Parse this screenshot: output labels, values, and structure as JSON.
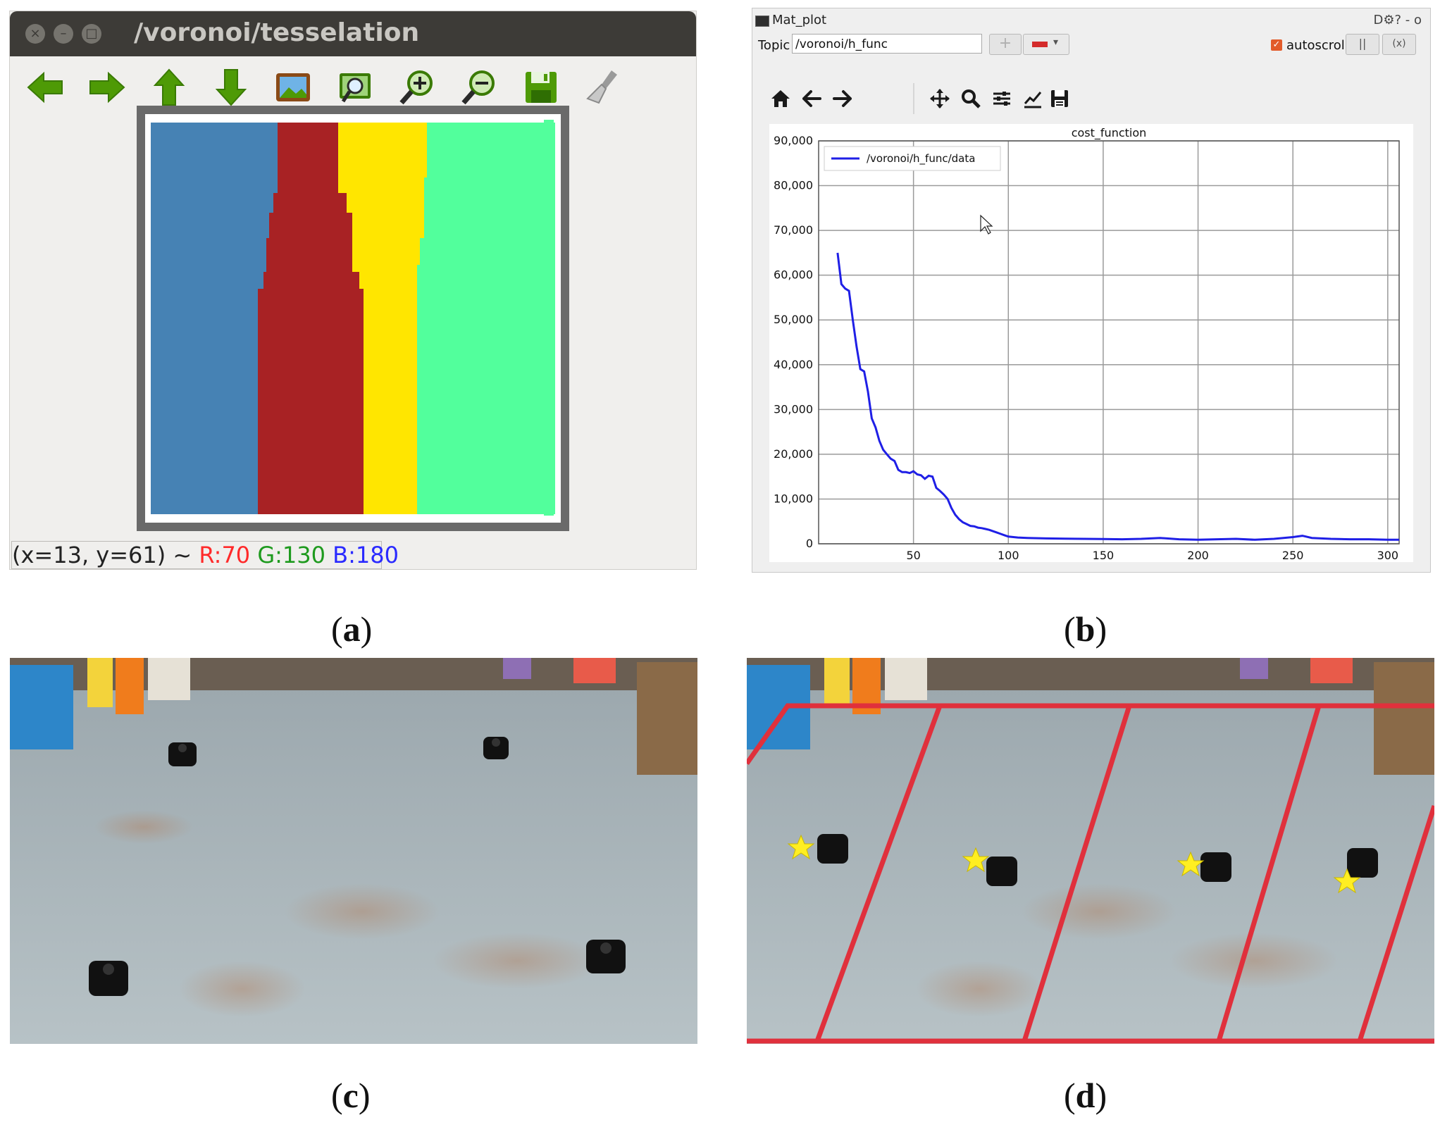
{
  "panel_a": {
    "window_title": "/voronoi/tesselation",
    "status": {
      "coords": "(x=13, y=61) ~ ",
      "r": "R:70",
      "g": "G:130",
      "b": "B:180"
    },
    "region_colors": [
      "#4682b4",
      "#a82224",
      "#ffe600",
      "#52ff9c"
    ],
    "toolbar_icons": [
      "arrow-left-icon",
      "arrow-right-icon",
      "arrow-up-icon",
      "arrow-down-icon",
      "image-icon",
      "zoom-fit-icon",
      "zoom-in-icon",
      "zoom-out-icon",
      "save-icon",
      "clear-brush-icon"
    ]
  },
  "panel_b": {
    "window_title": "Mat_plot",
    "window_controls": "D⚙? - o",
    "topic_label": "Topic",
    "topic_value": "/voronoi/h_func",
    "add_button": "+",
    "autoscroll_label": "autoscroll",
    "pause_button": "||",
    "clear_button": "(x)",
    "nav_icons": [
      "home-icon",
      "back-icon",
      "forward-icon",
      "pan-icon",
      "zoom-icon",
      "configure-subplots-icon",
      "edit-axis-icon",
      "save-figure-icon"
    ]
  },
  "chart_data": {
    "type": "line",
    "title": "cost_function",
    "xlabel": "",
    "ylabel": "",
    "xlim": [
      0,
      306
    ],
    "ylim": [
      0,
      90000
    ],
    "x_ticks": [
      50,
      100,
      150,
      200,
      250,
      300
    ],
    "y_ticks": [
      0,
      10000,
      20000,
      30000,
      40000,
      50000,
      60000,
      70000,
      80000,
      90000
    ],
    "x_tick_labels": [
      "50",
      "100",
      "150",
      "200",
      "250",
      "300"
    ],
    "y_tick_labels": [
      "0",
      "10,000",
      "20,000",
      "30,000",
      "40,000",
      "50,000",
      "60,000",
      "70,000",
      "80,000",
      "90,000"
    ],
    "grid": true,
    "legend_position": "top-left",
    "series": [
      {
        "name": "/voronoi/h_func/data",
        "color": "#1f1fe6",
        "x": [
          10,
          12,
          14,
          16,
          18,
          20,
          22,
          24,
          26,
          28,
          30,
          32,
          34,
          36,
          38,
          40,
          42,
          44,
          46,
          48,
          50,
          52,
          54,
          56,
          58,
          60,
          62,
          64,
          66,
          68,
          70,
          72,
          74,
          76,
          78,
          80,
          82,
          84,
          86,
          88,
          90,
          92,
          94,
          96,
          98,
          100,
          105,
          110,
          120,
          130,
          140,
          150,
          160,
          170,
          180,
          190,
          200,
          210,
          220,
          230,
          240,
          250,
          255,
          260,
          270,
          280,
          290,
          300,
          306
        ],
        "y": [
          65000,
          58000,
          57000,
          56500,
          50000,
          44000,
          39000,
          38500,
          34000,
          28000,
          26000,
          23000,
          21000,
          20000,
          19000,
          18500,
          16500,
          16000,
          16000,
          15800,
          16200,
          15500,
          15300,
          14500,
          15200,
          15000,
          12500,
          11800,
          11000,
          10000,
          8000,
          6500,
          5500,
          4800,
          4400,
          4000,
          3900,
          3600,
          3500,
          3300,
          3100,
          2800,
          2500,
          2200,
          1900,
          1600,
          1400,
          1300,
          1200,
          1150,
          1100,
          1050,
          1000,
          1100,
          1300,
          1000,
          900,
          1000,
          1100,
          900,
          1100,
          1500,
          1800,
          1300,
          1100,
          1000,
          1000,
          900,
          900
        ]
      }
    ]
  },
  "captions": {
    "a": "a",
    "b": "b",
    "c": "c",
    "d": "d"
  }
}
